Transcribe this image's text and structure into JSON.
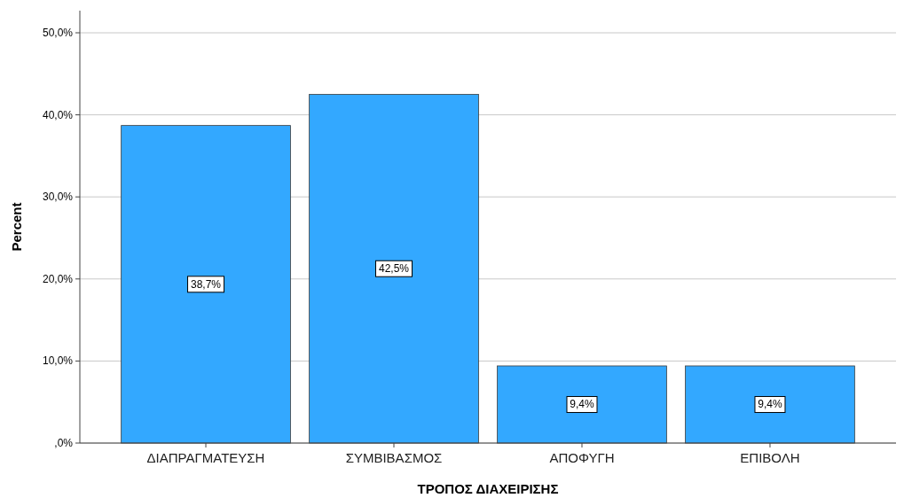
{
  "chart_data": {
    "type": "bar",
    "xlabel": "ΤΡΟΠΟΣ ΔΙΑΧΕΙΡΙΣΗΣ",
    "ylabel": "Percent",
    "categories": [
      "ΔΙΑΠΡΑΓΜΑΤΕΥΣΗ",
      "ΣΥΜΒΙΒΑΣΜΟΣ",
      "ΑΠΟΦΥΓΗ",
      "ΕΠΙΒΟΛΗ"
    ],
    "values": [
      38.7,
      42.5,
      9.4,
      9.4
    ],
    "value_labels": [
      "38,7%",
      "42,5%",
      "9,4%",
      "9,4%"
    ],
    "color": "#33a8ff",
    "ylim": [
      0,
      52.7
    ],
    "yticks": [
      {
        "value": 0,
        "label": ",0%"
      },
      {
        "value": 10,
        "label": "10,0%"
      },
      {
        "value": 20,
        "label": "20,0%"
      },
      {
        "value": 30,
        "label": "30,0%"
      },
      {
        "value": 40,
        "label": "40,0%"
      },
      {
        "value": 50,
        "label": "50,0%"
      }
    ],
    "grid": "y"
  }
}
